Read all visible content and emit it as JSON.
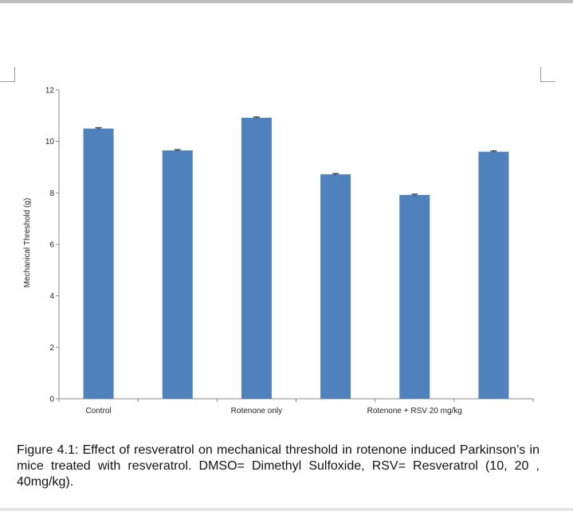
{
  "caption": "Figure 4.1: Effect of resveratrol on mechanical threshold in rotenone induced Parkinson’s in mice treated with resveratrol. DMSO= Dimethyl  Sulfoxide, RSV= Resveratrol (10, 20 , 40mg/kg).",
  "colors": {
    "bar": "#4f81bd",
    "axis": "#888888"
  },
  "chart_data": {
    "type": "bar",
    "title": "",
    "xlabel": "",
    "ylabel": "Mechanical Threshold (g)",
    "categories": [
      "Control",
      "",
      "Rotenone only",
      "",
      "Rotenone + RSV 20 mg/kg",
      ""
    ],
    "values": [
      10.5,
      9.65,
      10.92,
      8.72,
      7.92,
      9.6
    ],
    "error": [
      0.03,
      0.03,
      0.03,
      0.03,
      0.03,
      0.03
    ],
    "ylim": [
      0,
      12
    ],
    "yticks": [
      0,
      2,
      4,
      6,
      8,
      10,
      12
    ],
    "grid": false
  }
}
